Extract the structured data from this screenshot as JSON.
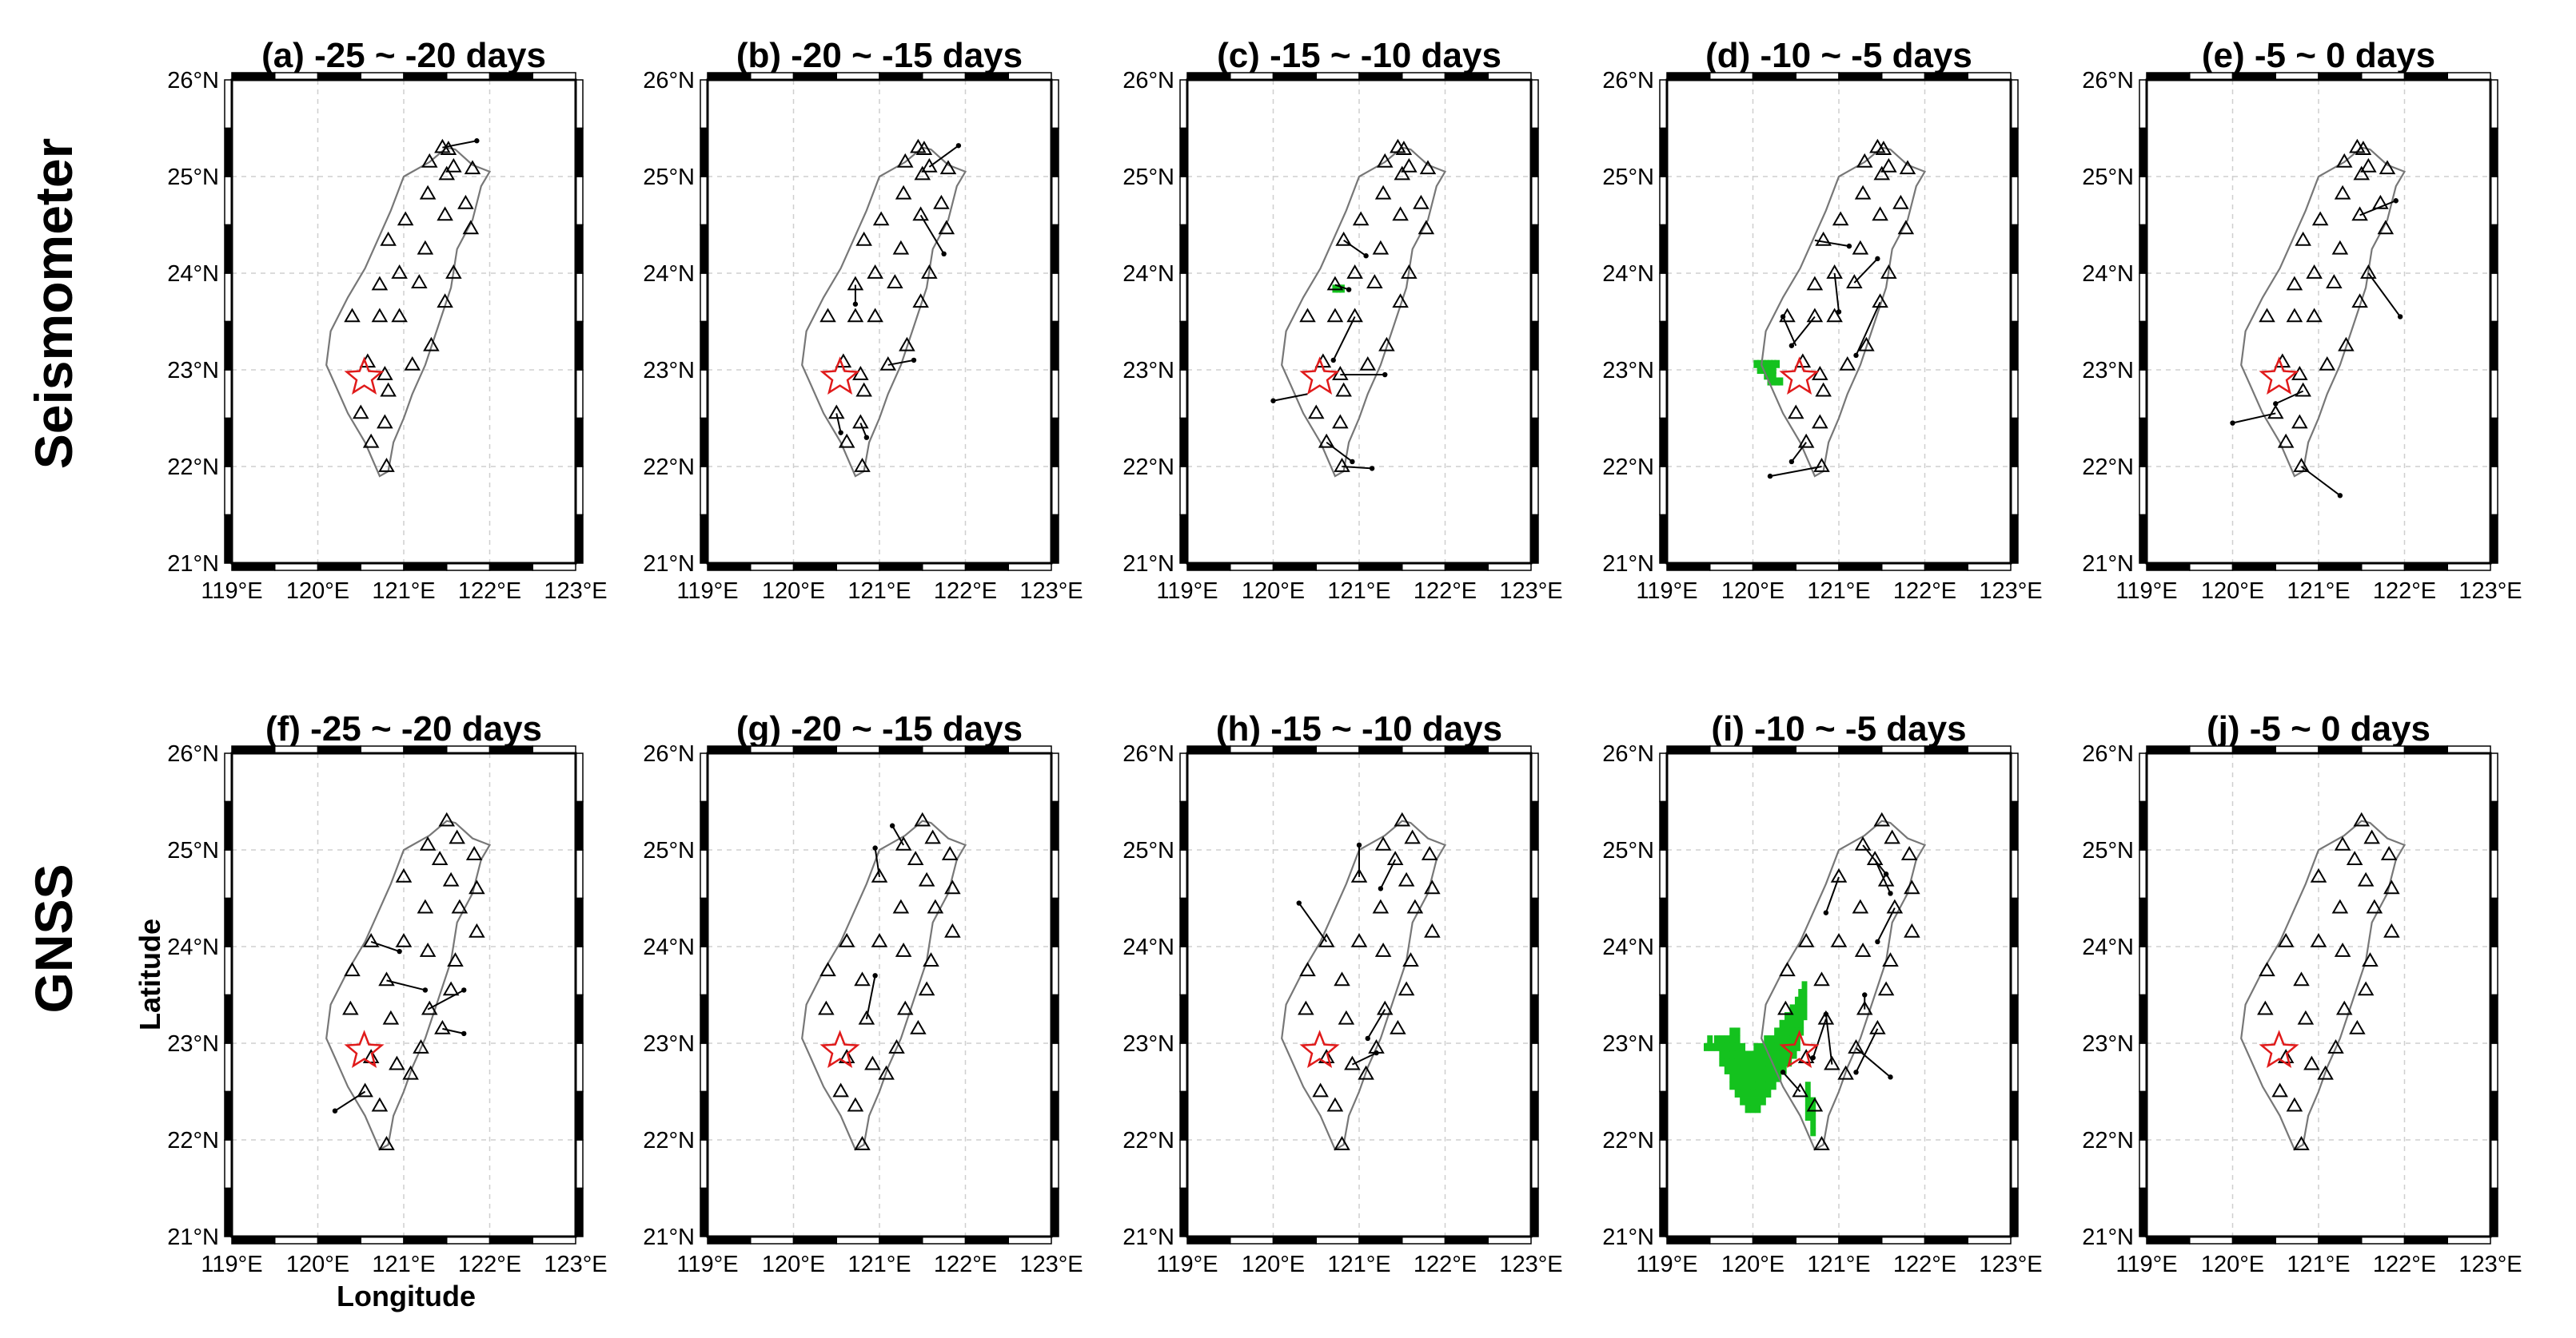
{
  "figure": {
    "row_labels": [
      "Seismometer",
      "GNSS"
    ],
    "x_axis_label": "Longitude",
    "y_axis_label": "Latitude",
    "lon_ticks": [
      119,
      120,
      121,
      122,
      123
    ],
    "lat_ticks": [
      21,
      22,
      23,
      24,
      25,
      26
    ],
    "lon_tick_labels": [
      "119°E",
      "120°E",
      "121°E",
      "122°E",
      "123°E"
    ],
    "lat_tick_labels": [
      "21°N",
      "22°N",
      "23°N",
      "24°N",
      "25°N",
      "26°N"
    ],
    "colors": {
      "anomaly": "#14c21e",
      "epicenter": "#e01a1a",
      "coastline": "#777777",
      "station": "#000000"
    }
  },
  "panels": [
    {
      "title": "(a) -25 ~ -20 days",
      "row": 0,
      "col": 0,
      "anomaly": null
    },
    {
      "title": "(b) -20 ~ -15 days",
      "row": 0,
      "col": 1,
      "anomaly": null
    },
    {
      "title": "(c) -15 ~ -10 days",
      "row": 0,
      "col": 2,
      "anomaly": "c"
    },
    {
      "title": "(d) -10 ~ -5 days",
      "row": 0,
      "col": 3,
      "anomaly": "d"
    },
    {
      "title": "(e) -5 ~ 0 days",
      "row": 0,
      "col": 4,
      "anomaly": null
    },
    {
      "title": "(f) -25 ~ -20 days",
      "row": 1,
      "col": 0,
      "anomaly": null
    },
    {
      "title": "(g) -20 ~ -15 days",
      "row": 1,
      "col": 1,
      "anomaly": null
    },
    {
      "title": "(h) -15 ~ -10 days",
      "row": 1,
      "col": 2,
      "anomaly": null
    },
    {
      "title": "(i) -10 ~ -5 days",
      "row": 1,
      "col": 3,
      "anomaly": "i"
    },
    {
      "title": "(j) -5 ~ 0 days",
      "row": 1,
      "col": 4,
      "anomaly": null
    }
  ],
  "map_data": {
    "epicenter": {
      "lon": 120.54,
      "lat": 22.92
    },
    "coastline": [
      [
        120.72,
        21.9
      ],
      [
        120.82,
        21.95
      ],
      [
        120.88,
        22.25
      ],
      [
        121.0,
        22.5
      ],
      [
        121.1,
        22.75
      ],
      [
        121.25,
        23.05
      ],
      [
        121.4,
        23.45
      ],
      [
        121.55,
        23.85
      ],
      [
        121.62,
        24.25
      ],
      [
        121.8,
        24.55
      ],
      [
        121.9,
        24.9
      ],
      [
        122.0,
        25.05
      ],
      [
        121.8,
        25.12
      ],
      [
        121.6,
        25.28
      ],
      [
        121.5,
        25.3
      ],
      [
        121.3,
        25.15
      ],
      [
        121.0,
        25.0
      ],
      [
        120.85,
        24.65
      ],
      [
        120.7,
        24.35
      ],
      [
        120.55,
        24.05
      ],
      [
        120.35,
        23.75
      ],
      [
        120.15,
        23.4
      ],
      [
        120.1,
        23.05
      ],
      [
        120.2,
        22.85
      ],
      [
        120.35,
        22.55
      ],
      [
        120.55,
        22.25
      ],
      [
        120.72,
        21.9
      ]
    ],
    "seismometer_stations": [
      [
        121.45,
        25.3
      ],
      [
        121.52,
        25.28
      ],
      [
        121.3,
        25.15
      ],
      [
        121.58,
        25.1
      ],
      [
        121.8,
        25.08
      ],
      [
        121.5,
        25.02
      ],
      [
        121.28,
        24.82
      ],
      [
        121.72,
        24.72
      ],
      [
        121.02,
        24.55
      ],
      [
        121.48,
        24.6
      ],
      [
        121.78,
        24.46
      ],
      [
        120.82,
        24.34
      ],
      [
        121.25,
        24.25
      ],
      [
        121.58,
        24.0
      ],
      [
        120.95,
        24.0
      ],
      [
        120.72,
        23.88
      ],
      [
        121.18,
        23.9
      ],
      [
        121.48,
        23.7
      ],
      [
        120.4,
        23.55
      ],
      [
        120.72,
        23.55
      ],
      [
        120.95,
        23.55
      ],
      [
        121.32,
        23.25
      ],
      [
        120.58,
        23.08
      ],
      [
        120.78,
        22.95
      ],
      [
        121.1,
        23.05
      ],
      [
        120.82,
        22.78
      ],
      [
        120.5,
        22.55
      ],
      [
        120.78,
        22.45
      ],
      [
        120.62,
        22.25
      ],
      [
        120.8,
        22.0
      ]
    ],
    "seismometer_vectors": [
      [
        [
          121.45,
          25.3,
          121.85,
          25.37
        ]
      ],
      [
        [
          121.58,
          25.1,
          121.92,
          25.32
        ],
        [
          121.48,
          24.6,
          121.75,
          24.2
        ],
        [
          120.72,
          23.88,
          120.72,
          23.68
        ],
        [
          121.1,
          23.05,
          121.4,
          23.1
        ],
        [
          120.5,
          22.55,
          120.55,
          22.35
        ],
        [
          120.78,
          22.45,
          120.85,
          22.3
        ]
      ],
      [
        [
          120.82,
          24.34,
          121.08,
          24.18
        ],
        [
          120.72,
          23.88,
          120.88,
          23.83
        ],
        [
          120.95,
          23.55,
          120.7,
          23.1
        ],
        [
          120.4,
          22.75,
          120.0,
          22.68
        ],
        [
          120.78,
          22.95,
          121.3,
          22.95
        ],
        [
          120.62,
          22.25,
          120.92,
          22.05
        ],
        [
          120.8,
          22.0,
          121.15,
          21.98
        ]
      ],
      [
        [
          120.72,
          24.34,
          121.12,
          24.28
        ],
        [
          120.95,
          24.0,
          121.0,
          23.6
        ],
        [
          121.18,
          23.9,
          121.45,
          24.15
        ],
        [
          121.48,
          23.7,
          121.2,
          23.15
        ],
        [
          120.5,
          23.25,
          120.35,
          23.55
        ],
        [
          120.72,
          23.55,
          120.45,
          23.25
        ],
        [
          120.62,
          22.25,
          120.45,
          22.05
        ],
        [
          120.8,
          22.0,
          120.2,
          21.9
        ]
      ],
      [
        [
          121.48,
          24.6,
          121.9,
          24.75
        ],
        [
          121.58,
          24.0,
          121.95,
          23.55
        ],
        [
          120.82,
          22.78,
          120.5,
          22.65
        ],
        [
          120.5,
          22.55,
          120.0,
          22.45
        ],
        [
          120.8,
          22.0,
          121.25,
          21.7
        ]
      ]
    ],
    "gnss_stations": [
      [
        121.5,
        25.3
      ],
      [
        121.28,
        25.05
      ],
      [
        121.62,
        25.12
      ],
      [
        121.82,
        24.95
      ],
      [
        121.42,
        24.9
      ],
      [
        121.0,
        24.72
      ],
      [
        121.55,
        24.68
      ],
      [
        121.85,
        24.6
      ],
      [
        121.25,
        24.4
      ],
      [
        121.65,
        24.4
      ],
      [
        121.85,
        24.15
      ],
      [
        120.62,
        24.05
      ],
      [
        121.0,
        24.05
      ],
      [
        121.28,
        23.95
      ],
      [
        121.6,
        23.85
      ],
      [
        120.4,
        23.75
      ],
      [
        120.8,
        23.65
      ],
      [
        121.55,
        23.55
      ],
      [
        121.3,
        23.35
      ],
      [
        120.38,
        23.35
      ],
      [
        120.85,
        23.25
      ],
      [
        121.45,
        23.15
      ],
      [
        121.2,
        22.95
      ],
      [
        120.62,
        22.85
      ],
      [
        120.92,
        22.78
      ],
      [
        121.08,
        22.68
      ],
      [
        120.55,
        22.5
      ],
      [
        120.72,
        22.35
      ],
      [
        120.8,
        21.95
      ]
    ],
    "gnss_vectors": [
      [
        [
          120.62,
          24.05,
          120.95,
          23.95
        ],
        [
          121.28,
          23.35,
          121.7,
          23.55
        ],
        [
          120.8,
          23.65,
          121.25,
          23.55
        ],
        [
          121.45,
          23.15,
          121.7,
          23.1
        ],
        [
          120.55,
          22.5,
          120.2,
          22.3
        ]
      ],
      [
        [
          121.0,
          24.72,
          120.95,
          25.02
        ],
        [
          121.28,
          25.05,
          121.15,
          25.25
        ],
        [
          120.85,
          23.25,
          120.95,
          23.7
        ]
      ],
      [
        [
          121.0,
          24.72,
          121.0,
          25.05
        ],
        [
          121.42,
          24.9,
          121.25,
          24.6
        ],
        [
          120.62,
          24.05,
          120.3,
          24.45
        ],
        [
          121.3,
          23.35,
          121.1,
          23.05
        ],
        [
          120.92,
          22.78,
          121.2,
          22.9
        ]
      ],
      [
        [
          121.28,
          25.05,
          121.55,
          24.75
        ],
        [
          121.42,
          24.9,
          121.6,
          24.55
        ],
        [
          121.0,
          24.72,
          120.85,
          24.35
        ],
        [
          121.65,
          24.4,
          121.45,
          24.05
        ],
        [
          121.3,
          23.35,
          121.3,
          23.5
        ],
        [
          120.85,
          23.25,
          120.7,
          22.85
        ],
        [
          121.45,
          23.15,
          121.2,
          22.7
        ],
        [
          121.2,
          22.95,
          121.6,
          22.65
        ],
        [
          120.92,
          22.78,
          120.85,
          23.3
        ],
        [
          120.55,
          22.5,
          120.35,
          22.7
        ]
      ],
      []
    ],
    "anomalies": {
      "c": [
        [
          120.72,
          23.84
        ],
        [
          120.76,
          23.84
        ],
        [
          120.8,
          23.84
        ]
      ],
      "d": [
        [
          120.04,
          23.06
        ],
        [
          120.08,
          23.06
        ],
        [
          120.12,
          23.06
        ],
        [
          120.16,
          23.06
        ],
        [
          120.2,
          23.06
        ],
        [
          120.24,
          23.06
        ],
        [
          120.28,
          23.06
        ],
        [
          120.08,
          23.0
        ],
        [
          120.12,
          23.0
        ],
        [
          120.16,
          23.0
        ],
        [
          120.2,
          23.0
        ],
        [
          120.24,
          23.0
        ],
        [
          120.16,
          22.94
        ],
        [
          120.2,
          22.94
        ],
        [
          120.24,
          22.94
        ],
        [
          120.2,
          22.88
        ],
        [
          120.24,
          22.88
        ],
        [
          120.28,
          22.88
        ],
        [
          120.32,
          22.88
        ]
      ],
      "i": [
        [
          120.6,
          23.6
        ],
        [
          120.56,
          23.52
        ],
        [
          120.6,
          23.52
        ],
        [
          120.52,
          23.44
        ],
        [
          120.56,
          23.44
        ],
        [
          120.6,
          23.44
        ],
        [
          120.46,
          23.36
        ],
        [
          120.52,
          23.36
        ],
        [
          120.56,
          23.36
        ],
        [
          120.6,
          23.36
        ],
        [
          120.4,
          23.28
        ],
        [
          120.46,
          23.28
        ],
        [
          120.52,
          23.28
        ],
        [
          120.56,
          23.28
        ],
        [
          120.6,
          23.28
        ],
        [
          120.34,
          23.2
        ],
        [
          120.4,
          23.2
        ],
        [
          120.46,
          23.2
        ],
        [
          120.52,
          23.2
        ],
        [
          120.56,
          23.2
        ],
        [
          119.76,
          23.12
        ],
        [
          119.82,
          23.12
        ],
        [
          120.28,
          23.12
        ],
        [
          120.34,
          23.12
        ],
        [
          120.4,
          23.12
        ],
        [
          120.46,
          23.12
        ],
        [
          120.52,
          23.12
        ],
        [
          120.56,
          23.12
        ],
        [
          119.5,
          23.04
        ],
        [
          119.58,
          23.04
        ],
        [
          119.64,
          23.04
        ],
        [
          119.7,
          23.04
        ],
        [
          119.76,
          23.04
        ],
        [
          119.82,
          23.04
        ],
        [
          120.16,
          23.04
        ],
        [
          120.22,
          23.04
        ],
        [
          120.28,
          23.04
        ],
        [
          120.34,
          23.04
        ],
        [
          120.4,
          23.04
        ],
        [
          120.46,
          23.04
        ],
        [
          120.52,
          23.04
        ],
        [
          119.46,
          22.96
        ],
        [
          119.52,
          22.96
        ],
        [
          119.58,
          22.96
        ],
        [
          119.64,
          22.96
        ],
        [
          119.7,
          22.96
        ],
        [
          119.76,
          22.96
        ],
        [
          119.82,
          22.96
        ],
        [
          119.88,
          22.96
        ],
        [
          120.04,
          22.96
        ],
        [
          120.1,
          22.96
        ],
        [
          120.16,
          22.96
        ],
        [
          120.22,
          22.96
        ],
        [
          120.28,
          22.96
        ],
        [
          120.34,
          22.96
        ],
        [
          120.4,
          22.96
        ],
        [
          120.46,
          22.96
        ],
        [
          120.52,
          22.96
        ],
        [
          119.64,
          22.88
        ],
        [
          119.7,
          22.88
        ],
        [
          119.76,
          22.88
        ],
        [
          119.82,
          22.88
        ],
        [
          119.88,
          22.88
        ],
        [
          119.94,
          22.88
        ],
        [
          120.0,
          22.88
        ],
        [
          120.06,
          22.88
        ],
        [
          120.12,
          22.88
        ],
        [
          120.18,
          22.88
        ],
        [
          120.24,
          22.88
        ],
        [
          120.3,
          22.88
        ],
        [
          120.36,
          22.88
        ],
        [
          120.42,
          22.88
        ],
        [
          120.48,
          22.88
        ],
        [
          119.64,
          22.8
        ],
        [
          119.7,
          22.8
        ],
        [
          119.76,
          22.8
        ],
        [
          119.82,
          22.8
        ],
        [
          119.88,
          22.8
        ],
        [
          119.94,
          22.8
        ],
        [
          120.0,
          22.8
        ],
        [
          120.06,
          22.8
        ],
        [
          120.12,
          22.8
        ],
        [
          120.18,
          22.8
        ],
        [
          120.24,
          22.8
        ],
        [
          120.3,
          22.8
        ],
        [
          120.36,
          22.8
        ],
        [
          120.42,
          22.8
        ],
        [
          119.7,
          22.72
        ],
        [
          119.76,
          22.72
        ],
        [
          119.82,
          22.72
        ],
        [
          119.88,
          22.72
        ],
        [
          119.94,
          22.72
        ],
        [
          120.0,
          22.72
        ],
        [
          120.06,
          22.72
        ],
        [
          120.12,
          22.72
        ],
        [
          120.18,
          22.72
        ],
        [
          120.24,
          22.72
        ],
        [
          120.3,
          22.72
        ],
        [
          120.36,
          22.72
        ],
        [
          119.76,
          22.64
        ],
        [
          119.82,
          22.64
        ],
        [
          119.88,
          22.64
        ],
        [
          119.94,
          22.64
        ],
        [
          120.0,
          22.64
        ],
        [
          120.06,
          22.64
        ],
        [
          120.12,
          22.64
        ],
        [
          120.18,
          22.64
        ],
        [
          120.24,
          22.64
        ],
        [
          120.3,
          22.64
        ],
        [
          119.76,
          22.56
        ],
        [
          119.82,
          22.56
        ],
        [
          119.88,
          22.56
        ],
        [
          119.94,
          22.56
        ],
        [
          120.0,
          22.56
        ],
        [
          120.06,
          22.56
        ],
        [
          120.12,
          22.56
        ],
        [
          120.18,
          22.56
        ],
        [
          120.24,
          22.56
        ],
        [
          120.64,
          22.56
        ],
        [
          119.82,
          22.48
        ],
        [
          119.88,
          22.48
        ],
        [
          119.94,
          22.48
        ],
        [
          120.0,
          22.48
        ],
        [
          120.06,
          22.48
        ],
        [
          120.12,
          22.48
        ],
        [
          120.18,
          22.48
        ],
        [
          120.64,
          22.48
        ],
        [
          119.88,
          22.4
        ],
        [
          119.94,
          22.4
        ],
        [
          120.0,
          22.4
        ],
        [
          120.06,
          22.4
        ],
        [
          120.12,
          22.4
        ],
        [
          120.64,
          22.4
        ],
        [
          120.7,
          22.4
        ],
        [
          119.94,
          22.32
        ],
        [
          120.0,
          22.32
        ],
        [
          120.06,
          22.32
        ],
        [
          120.64,
          22.32
        ],
        [
          120.7,
          22.32
        ],
        [
          120.64,
          22.24
        ],
        [
          120.7,
          22.24
        ],
        [
          120.7,
          22.16
        ],
        [
          120.7,
          22.08
        ]
      ]
    }
  }
}
